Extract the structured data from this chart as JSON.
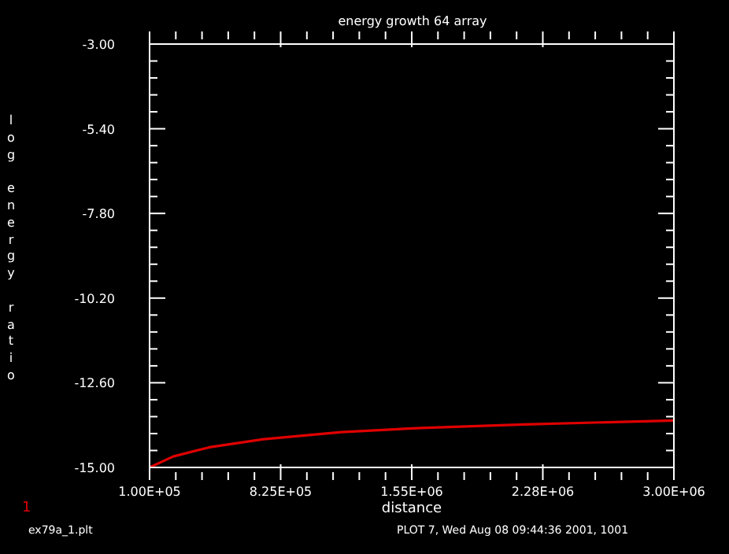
{
  "chart_data": {
    "type": "line",
    "title": "energy growth 64 array",
    "xlabel": "distance",
    "ylabel": "log energy ratio",
    "annotations": [
      "1",
      "ex79a_1.plt",
      "PLOT 7, Wed Aug 08 09:44:36 2001, 1001"
    ],
    "xlim": [
      100000,
      3000000
    ],
    "ylim": [
      -15,
      -3
    ],
    "xticks": [
      {
        "value": 100000,
        "label": "1.00E+05"
      },
      {
        "value": 245000,
        "label": null
      },
      {
        "value": 390000,
        "label": null
      },
      {
        "value": 535000,
        "label": null
      },
      {
        "value": 680000,
        "label": null
      },
      {
        "value": 825000,
        "label": "8.25E+05"
      },
      {
        "value": 970000,
        "label": null
      },
      {
        "value": 1115000,
        "label": null
      },
      {
        "value": 1260000,
        "label": null
      },
      {
        "value": 1405000,
        "label": null
      },
      {
        "value": 1550000,
        "label": "1.55E+06"
      },
      {
        "value": 1695000,
        "label": null
      },
      {
        "value": 1840000,
        "label": null
      },
      {
        "value": 1985000,
        "label": null
      },
      {
        "value": 2130000,
        "label": null
      },
      {
        "value": 2275000,
        "label": "2.28E+06"
      },
      {
        "value": 2420000,
        "label": null
      },
      {
        "value": 2565000,
        "label": null
      },
      {
        "value": 2710000,
        "label": null
      },
      {
        "value": 2855000,
        "label": null
      },
      {
        "value": 3000000,
        "label": "3.00E+06"
      }
    ],
    "yticks": [
      {
        "value": -15,
        "label": "-15.00"
      },
      {
        "value": -14.52,
        "label": null
      },
      {
        "value": -14.04,
        "label": null
      },
      {
        "value": -13.56,
        "label": null
      },
      {
        "value": -13.08,
        "label": null
      },
      {
        "value": -12.6,
        "label": "-12.60"
      },
      {
        "value": -12.12,
        "label": null
      },
      {
        "value": -11.64,
        "label": null
      },
      {
        "value": -11.16,
        "label": null
      },
      {
        "value": -10.68,
        "label": null
      },
      {
        "value": -10.2,
        "label": "-10.20"
      },
      {
        "value": -9.72,
        "label": null
      },
      {
        "value": -9.24,
        "label": null
      },
      {
        "value": -8.76,
        "label": null
      },
      {
        "value": -8.28,
        "label": null
      },
      {
        "value": -7.8,
        "label": "-7.80"
      },
      {
        "value": -7.32,
        "label": null
      },
      {
        "value": -6.84,
        "label": null
      },
      {
        "value": -6.36,
        "label": null
      },
      {
        "value": -5.88,
        "label": null
      },
      {
        "value": -5.4,
        "label": "-5.40"
      },
      {
        "value": -4.92,
        "label": null
      },
      {
        "value": -4.44,
        "label": null
      },
      {
        "value": -3.96,
        "label": null
      },
      {
        "value": -3.48,
        "label": null
      },
      {
        "value": -3,
        "label": "-3.00"
      }
    ],
    "grid": false,
    "marker": "none",
    "line_style": "solid",
    "x": [
      100000,
      230000,
      430000,
      730000,
      1160000,
      1600000,
      2170000,
      3000000
    ],
    "series": [
      {
        "color": "#e00000",
        "values": [
          -15,
          -14.69,
          -14.43,
          -14.2,
          -14.0,
          -13.88,
          -13.78,
          -13.67
        ]
      }
    ]
  }
}
